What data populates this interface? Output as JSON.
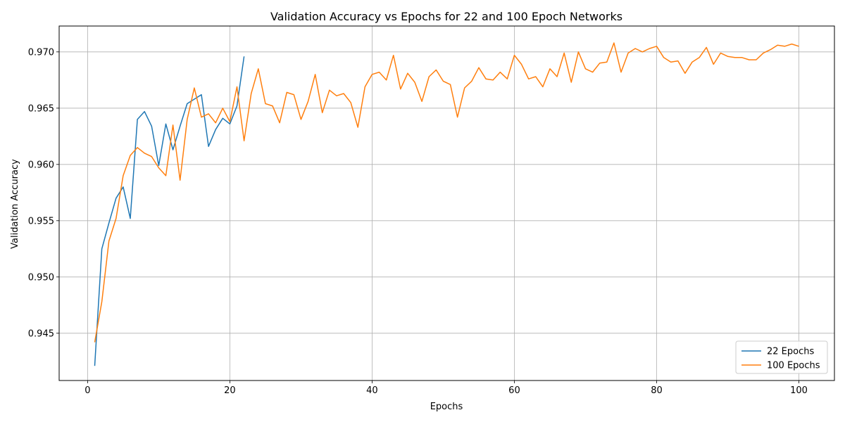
{
  "chart_data": {
    "type": "line",
    "title": "Validation Accuracy vs Epochs for 22 and 100 Epoch Networks",
    "xlabel": "Epochs",
    "ylabel": "Validation Accuracy",
    "xlim": [
      -4,
      105
    ],
    "ylim": [
      0.9408,
      0.9723
    ],
    "xticks": [
      0,
      20,
      40,
      60,
      80,
      100
    ],
    "xtick_labels": [
      "0",
      "20",
      "40",
      "60",
      "80",
      "100"
    ],
    "yticks": [
      0.945,
      0.95,
      0.955,
      0.96,
      0.965,
      0.97
    ],
    "ytick_labels": [
      "0.945",
      "0.950",
      "0.955",
      "0.960",
      "0.965",
      "0.970"
    ],
    "grid": true,
    "legend_position": "lower-right",
    "series": [
      {
        "name": "22 Epochs",
        "color": "#1f77b4",
        "x": [
          1,
          2,
          3,
          4,
          5,
          6,
          7,
          8,
          9,
          10,
          11,
          12,
          13,
          14,
          15,
          16,
          17,
          18,
          19,
          20,
          21,
          22
        ],
        "values": [
          0.9421,
          0.9525,
          0.9548,
          0.957,
          0.958,
          0.9552,
          0.964,
          0.9647,
          0.9634,
          0.9599,
          0.9636,
          0.9613,
          0.9634,
          0.9654,
          0.9658,
          0.9662,
          0.9616,
          0.9631,
          0.9641,
          0.9636,
          0.9652,
          0.9696
        ]
      },
      {
        "name": "100 Epochs",
        "color": "#ff7f0e",
        "x": [
          1,
          2,
          3,
          4,
          5,
          6,
          7,
          8,
          9,
          10,
          11,
          12,
          13,
          14,
          15,
          16,
          17,
          18,
          19,
          20,
          21,
          22,
          23,
          24,
          25,
          26,
          27,
          28,
          29,
          30,
          31,
          32,
          33,
          34,
          35,
          36,
          37,
          38,
          39,
          40,
          41,
          42,
          43,
          44,
          45,
          46,
          47,
          48,
          49,
          50,
          51,
          52,
          53,
          54,
          55,
          56,
          57,
          58,
          59,
          60,
          61,
          62,
          63,
          64,
          65,
          66,
          67,
          68,
          69,
          70,
          71,
          72,
          73,
          74,
          75,
          76,
          77,
          78,
          79,
          80,
          81,
          82,
          83,
          84,
          85,
          86,
          87,
          88,
          89,
          90,
          91,
          92,
          93,
          94,
          95,
          96,
          97,
          98,
          99,
          100
        ],
        "values": [
          0.9442,
          0.9478,
          0.9532,
          0.9552,
          0.959,
          0.9608,
          0.9615,
          0.961,
          0.9607,
          0.9597,
          0.959,
          0.9635,
          0.9586,
          0.964,
          0.9668,
          0.9642,
          0.9645,
          0.9637,
          0.965,
          0.9638,
          0.9669,
          0.9621,
          0.9663,
          0.9685,
          0.9654,
          0.9652,
          0.9637,
          0.9664,
          0.9662,
          0.964,
          0.9656,
          0.968,
          0.9646,
          0.9666,
          0.9661,
          0.9663,
          0.9655,
          0.9633,
          0.9669,
          0.968,
          0.9682,
          0.9675,
          0.9697,
          0.9667,
          0.9681,
          0.9673,
          0.9656,
          0.9678,
          0.9684,
          0.9674,
          0.9671,
          0.9642,
          0.9668,
          0.9674,
          0.9686,
          0.9676,
          0.9675,
          0.9682,
          0.9676,
          0.9697,
          0.9689,
          0.9676,
          0.9678,
          0.9669,
          0.9685,
          0.9678,
          0.9699,
          0.9673,
          0.97,
          0.9685,
          0.9682,
          0.969,
          0.9691,
          0.9708,
          0.9682,
          0.9699,
          0.9703,
          0.97,
          0.9703,
          0.9705,
          0.9695,
          0.9691,
          0.9692,
          0.9681,
          0.9691,
          0.9695,
          0.9704,
          0.9689,
          0.9699,
          0.9696,
          0.9695,
          0.9695,
          0.9693,
          0.9693,
          0.9699,
          0.9702,
          0.9706,
          0.9705,
          0.9707,
          0.9705
        ]
      }
    ]
  }
}
